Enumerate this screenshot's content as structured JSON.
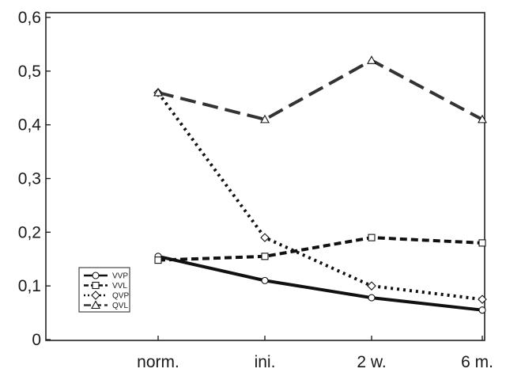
{
  "chart_data": {
    "type": "line",
    "title": "",
    "xlabel": "",
    "ylabel": "",
    "categories": [
      "norm.",
      "ini.",
      "2 w.",
      "6 m."
    ],
    "ylim": [
      0,
      0.6
    ],
    "yticks": [
      0,
      0.1,
      0.2,
      0.3,
      0.4,
      0.5,
      0.6
    ],
    "ytick_labels": [
      "0",
      "0,1",
      "0,2",
      "0,3",
      "0,4",
      "0,5",
      "0,6"
    ],
    "grid": false,
    "legend_position": "bottom-left",
    "series": [
      {
        "name": "VVP",
        "values": [
          0.155,
          0.11,
          0.078,
          0.055
        ],
        "marker": "circle",
        "line": "solid",
        "color": "#111111"
      },
      {
        "name": "VVL",
        "values": [
          0.148,
          0.155,
          0.19,
          0.18
        ],
        "marker": "square",
        "line": "dashed",
        "color": "#111111"
      },
      {
        "name": "QVP",
        "values": [
          0.46,
          0.19,
          0.1,
          0.075
        ],
        "marker": "diamond",
        "line": "dotted",
        "color": "#111111"
      },
      {
        "name": "QVL",
        "values": [
          0.46,
          0.41,
          0.52,
          0.41
        ],
        "marker": "triangle",
        "line": "long-dashed",
        "color": "#333333"
      }
    ]
  }
}
